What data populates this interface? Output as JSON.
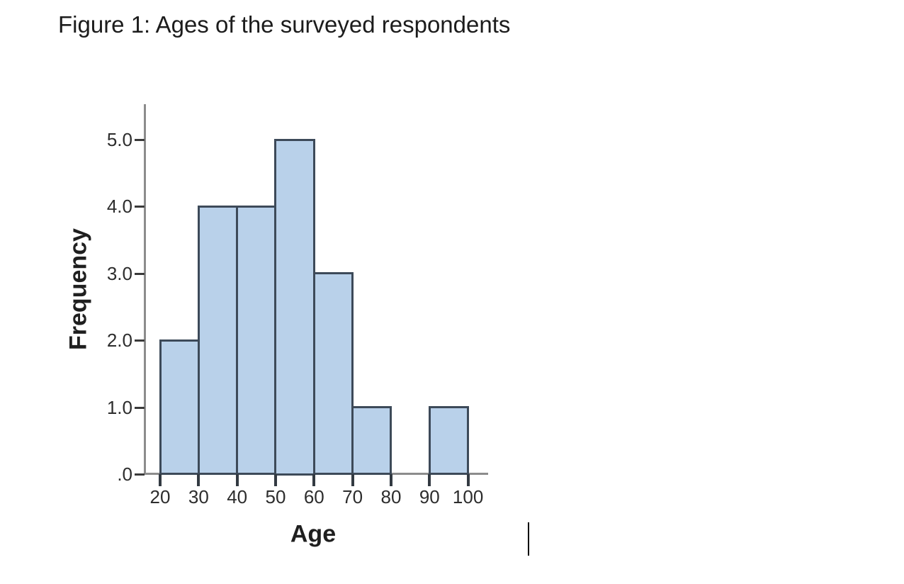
{
  "figure": {
    "caption": "Figure 1: Ages of the surveyed respondents"
  },
  "chart_data": {
    "type": "bar",
    "subtype": "histogram",
    "title": "Figure 1: Ages of the surveyed respondents",
    "xlabel": "Age",
    "ylabel": "Frequency",
    "x_tick_labels": [
      "20",
      "30",
      "40",
      "50",
      "60",
      "70",
      "80",
      "90",
      "100"
    ],
    "y_tick_labels": [
      "5.0",
      "4.0",
      "3.0",
      "2.0",
      "1.0",
      ".0"
    ],
    "xlim": [
      20,
      100
    ],
    "ylim": [
      0,
      5
    ],
    "grid": false,
    "legend": false,
    "bins": [
      {
        "range": [
          20,
          30
        ],
        "frequency": 2
      },
      {
        "range": [
          30,
          40
        ],
        "frequency": 4
      },
      {
        "range": [
          40,
          50
        ],
        "frequency": 4
      },
      {
        "range": [
          50,
          60
        ],
        "frequency": 5
      },
      {
        "range": [
          60,
          70
        ],
        "frequency": 3
      },
      {
        "range": [
          70,
          80
        ],
        "frequency": 1
      },
      {
        "range": [
          80,
          90
        ],
        "frequency": 0
      },
      {
        "range": [
          90,
          100
        ],
        "frequency": 1
      }
    ],
    "colors": {
      "bar_fill": "#b9d1ea",
      "bar_border": "#3d4a59",
      "axis_line": "#8c8c8c",
      "tick": "#333a42",
      "label": "#2d2d2d"
    }
  },
  "editor": {
    "caret_visible": true
  }
}
